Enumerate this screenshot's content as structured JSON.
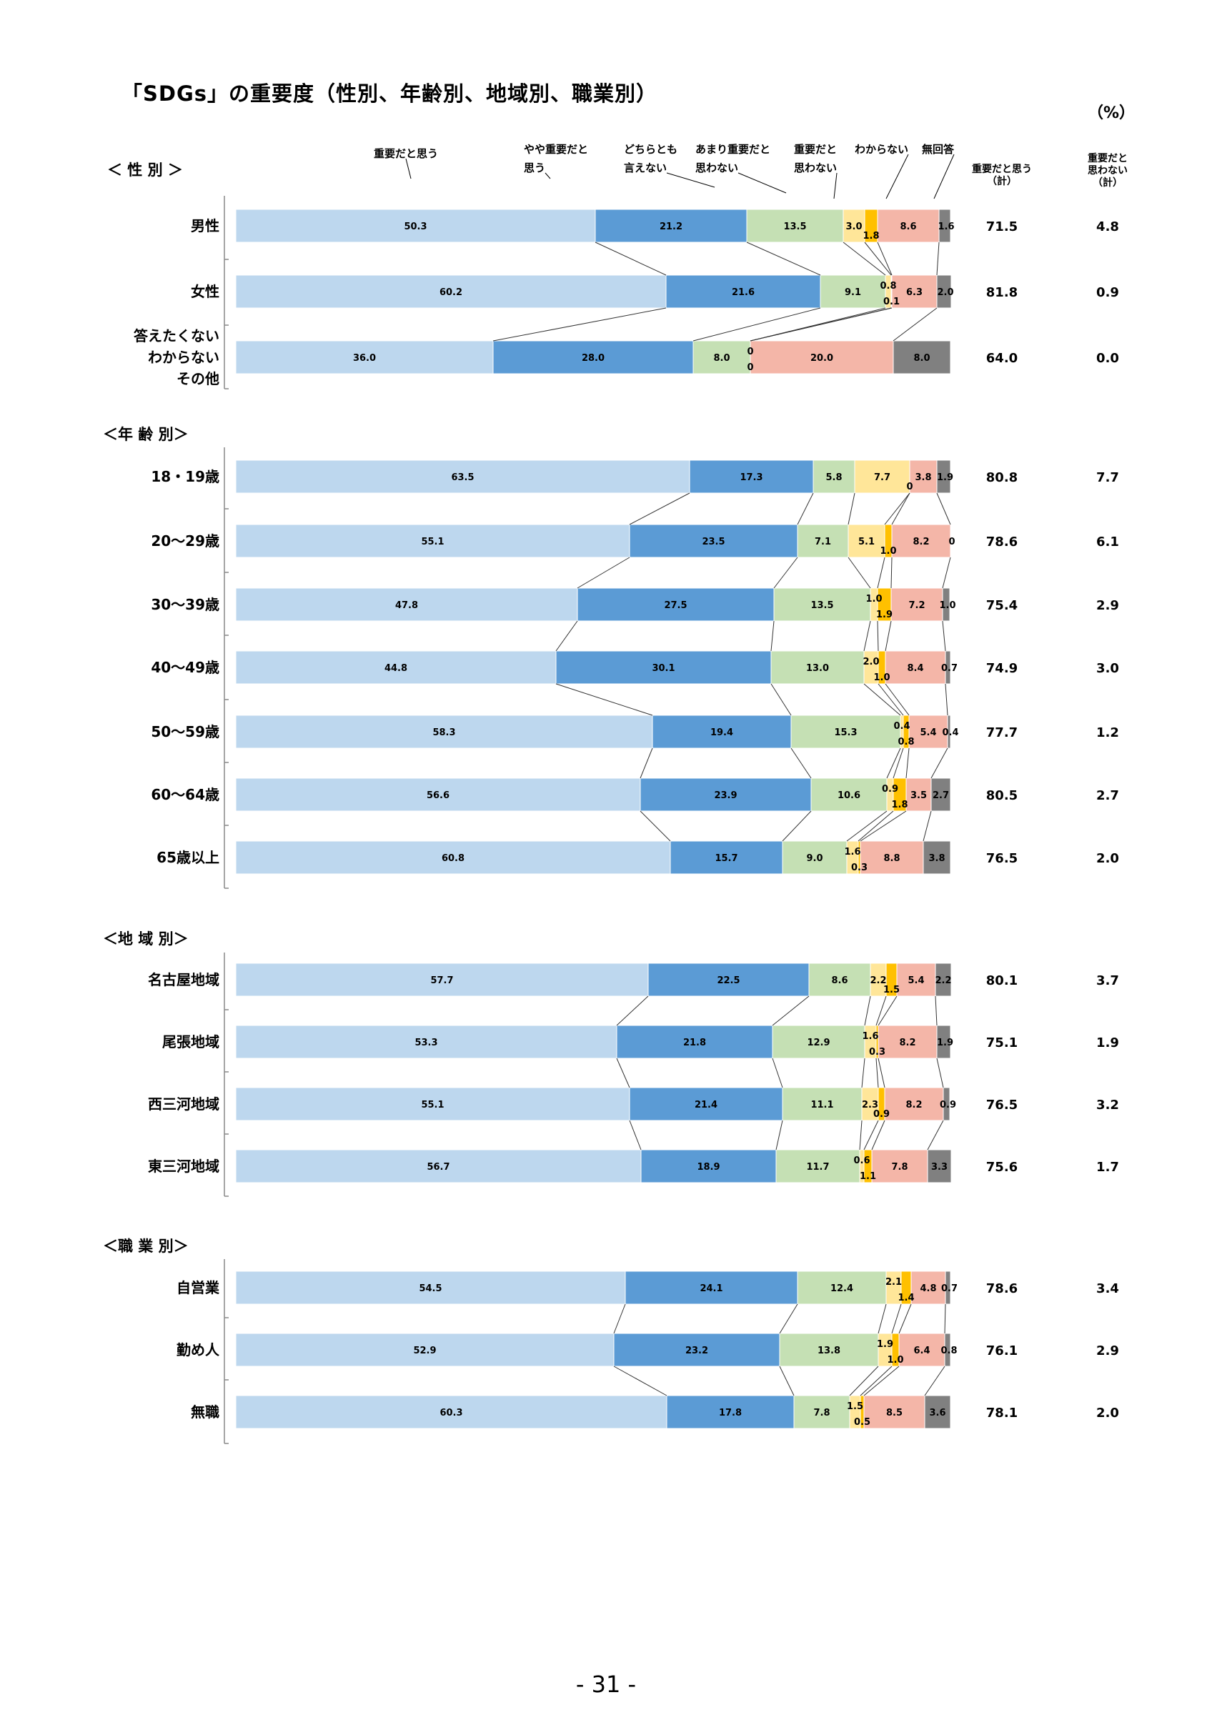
{
  "title": "「SDGs」の重要度（性別、年齢別、地域別、職業別）",
  "unit": "（%）",
  "page_number": "- 31 -",
  "chart_data": {
    "type": "bar",
    "stacked": true,
    "orientation": "horizontal",
    "legend_position": "top",
    "series": [
      {
        "name": "重要だと思う",
        "color": "#bdd7ee"
      },
      {
        "name": "やや重要だと思う",
        "color": "#5b9bd5"
      },
      {
        "name": "どちらとも言えない",
        "color": "#c5e0b4"
      },
      {
        "name": "あまり重要だと思わない",
        "color": "#ffe699"
      },
      {
        "name": "重要だと思わない",
        "color": "#ffc000"
      },
      {
        "name": "わからない",
        "color": "#f4b6a8"
      },
      {
        "name": "無回答",
        "color": "#808080"
      }
    ],
    "total_headers": [
      "重要だと思う（計）",
      "重要だと思わない（計）"
    ],
    "groups": [
      {
        "label": "＜ 性 別 ＞",
        "rows": [
          {
            "category": "男性",
            "values": [
              50.3,
              21.2,
              13.5,
              3.0,
              1.8,
              8.6,
              1.6
            ],
            "labels": [
              "50.3",
              "21.2",
              "13.5",
              "3.0",
              "1.8",
              "8.6",
              "1.6"
            ],
            "totals": [
              "71.5",
              "4.8"
            ]
          },
          {
            "category": "女性",
            "values": [
              60.2,
              21.6,
              9.1,
              0.8,
              0.1,
              6.3,
              2.0
            ],
            "labels": [
              "60.2",
              "21.6",
              "9.1",
              "0.8",
              "0.1",
              "6.3",
              "2.0"
            ],
            "totals": [
              "81.8",
              "0.9"
            ]
          },
          {
            "category": "答えたくない わからない その他",
            "values": [
              36.0,
              28.0,
              8.0,
              0,
              0,
              20.0,
              8.0
            ],
            "labels": [
              "36.0",
              "28.0",
              "8.0",
              "0",
              "0",
              "20.0",
              "8.0"
            ],
            "totals": [
              "64.0",
              "0.0"
            ]
          }
        ]
      },
      {
        "label": "＜年 齢 別＞",
        "rows": [
          {
            "category": "18・19歳",
            "values": [
              63.5,
              17.3,
              5.8,
              7.7,
              0,
              3.8,
              1.9
            ],
            "labels": [
              "63.5",
              "17.3",
              "5.8",
              "7.7",
              "0",
              "3.8",
              "1.9"
            ],
            "totals": [
              "80.8",
              "7.7"
            ]
          },
          {
            "category": "20～29歳",
            "values": [
              55.1,
              23.5,
              7.1,
              5.1,
              1.0,
              8.2,
              0
            ],
            "labels": [
              "55.1",
              "23.5",
              "7.1",
              "5.1",
              "1.0",
              "8.2",
              "0"
            ],
            "totals": [
              "78.6",
              "6.1"
            ]
          },
          {
            "category": "30～39歳",
            "values": [
              47.8,
              27.5,
              13.5,
              1.0,
              1.9,
              7.2,
              1.0
            ],
            "labels": [
              "47.8",
              "27.5",
              "13.5",
              "1.0",
              "1.9",
              "7.2",
              "1.0"
            ],
            "totals": [
              "75.4",
              "2.9"
            ]
          },
          {
            "category": "40～49歳",
            "values": [
              44.8,
              30.1,
              13.0,
              2.0,
              1.0,
              8.4,
              0.7
            ],
            "labels": [
              "44.8",
              "30.1",
              "13.0",
              "2.0",
              "1.0",
              "8.4",
              "0.7"
            ],
            "totals": [
              "74.9",
              "3.0"
            ]
          },
          {
            "category": "50～59歳",
            "values": [
              58.3,
              19.4,
              15.3,
              0.4,
              0.8,
              5.4,
              0.4
            ],
            "labels": [
              "58.3",
              "19.4",
              "15.3",
              "0.4",
              "0.8",
              "5.4",
              "0.4"
            ],
            "totals": [
              "77.7",
              "1.2"
            ]
          },
          {
            "category": "60～64歳",
            "values": [
              56.6,
              23.9,
              10.6,
              0.9,
              1.8,
              3.5,
              2.7
            ],
            "labels": [
              "56.6",
              "23.9",
              "10.6",
              "0.9",
              "1.8",
              "3.5",
              "2.7"
            ],
            "totals": [
              "80.5",
              "2.7"
            ]
          },
          {
            "category": "65歳以上",
            "values": [
              60.8,
              15.7,
              9.0,
              1.6,
              0.3,
              8.8,
              3.8
            ],
            "labels": [
              "60.8",
              "15.7",
              "9.0",
              "1.6",
              "0.3",
              "8.8",
              "3.8"
            ],
            "totals": [
              "76.5",
              "2.0"
            ]
          }
        ]
      },
      {
        "label": "＜地 域 別＞",
        "rows": [
          {
            "category": "名古屋地域",
            "values": [
              57.7,
              22.5,
              8.6,
              2.2,
              1.5,
              5.4,
              2.2
            ],
            "labels": [
              "57.7",
              "22.5",
              "8.6",
              "2.2",
              "1.5",
              "5.4",
              "2.2"
            ],
            "totals": [
              "80.1",
              "3.7"
            ]
          },
          {
            "category": "尾張地域",
            "values": [
              53.3,
              21.8,
              12.9,
              1.6,
              0.3,
              8.2,
              1.9
            ],
            "labels": [
              "53.3",
              "21.8",
              "12.9",
              "1.6",
              "0.3",
              "8.2",
              "1.9"
            ],
            "totals": [
              "75.1",
              "1.9"
            ]
          },
          {
            "category": "西三河地域",
            "values": [
              55.1,
              21.4,
              11.1,
              2.3,
              0.9,
              8.2,
              0.9
            ],
            "labels": [
              "55.1",
              "21.4",
              "11.1",
              "2.3",
              "0.9",
              "8.2",
              "0.9"
            ],
            "totals": [
              "76.5",
              "3.2"
            ]
          },
          {
            "category": "東三河地域",
            "values": [
              56.7,
              18.9,
              11.7,
              0.6,
              1.1,
              7.8,
              3.3
            ],
            "labels": [
              "56.7",
              "18.9",
              "11.7",
              "0.6",
              "1.1",
              "7.8",
              "3.3"
            ],
            "totals": [
              "75.6",
              "1.7"
            ]
          }
        ]
      },
      {
        "label": "＜職 業 別＞",
        "rows": [
          {
            "category": "自営業",
            "values": [
              54.5,
              24.1,
              12.4,
              2.1,
              1.4,
              4.8,
              0.7
            ],
            "labels": [
              "54.5",
              "24.1",
              "12.4",
              "2.1",
              "1.4",
              "4.8",
              "0.7"
            ],
            "totals": [
              "78.6",
              "3.4"
            ]
          },
          {
            "category": "勤め人",
            "values": [
              52.9,
              23.2,
              13.8,
              1.9,
              1.0,
              6.4,
              0.8
            ],
            "labels": [
              "52.9",
              "23.2",
              "13.8",
              "1.9",
              "1.0",
              "6.4",
              "0.8"
            ],
            "totals": [
              "76.1",
              "2.9"
            ]
          },
          {
            "category": "無職",
            "values": [
              60.3,
              17.8,
              7.8,
              1.5,
              0.5,
              8.5,
              3.6
            ],
            "labels": [
              "60.3",
              "17.8",
              "7.8",
              "1.5",
              "0.5",
              "8.5",
              "3.6"
            ],
            "totals": [
              "78.1",
              "2.0"
            ]
          }
        ]
      }
    ]
  }
}
